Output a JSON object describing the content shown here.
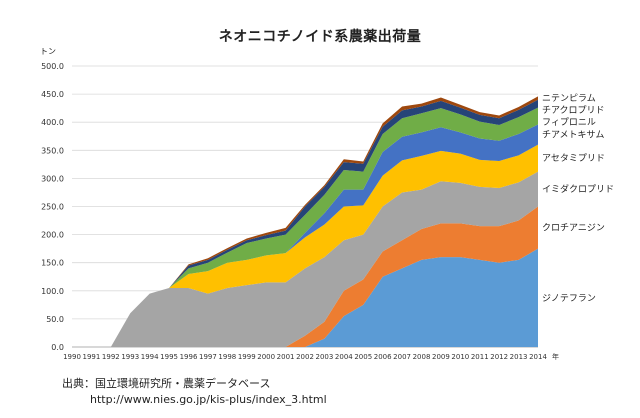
{
  "chart_data": {
    "type": "area",
    "stacked": true,
    "title": "ネオニコチノイド系農薬出荷量",
    "ylabel": "トン",
    "xlabel": "年",
    "ylim": [
      0,
      500
    ],
    "yticks": [
      "0.0",
      "50.0",
      "100.0",
      "150.0",
      "200.0",
      "250.0",
      "300.0",
      "350.0",
      "400.0",
      "450.0",
      "500.0"
    ],
    "grid": true,
    "legend": "right-inline",
    "categories": [
      "1990",
      "1991",
      "1992",
      "1993",
      "1994",
      "1995",
      "1996",
      "1997",
      "1998",
      "1999",
      "2000",
      "2001",
      "2002",
      "2003",
      "2004",
      "2005",
      "2006",
      "2007",
      "2008",
      "2009",
      "2010",
      "2011",
      "2012",
      "2013",
      "2014"
    ],
    "series": [
      {
        "name": "ジノテフラン",
        "color": "#5b9bd5",
        "values": [
          0,
          0,
          0,
          0,
          0,
          0,
          0,
          0,
          0,
          0,
          0,
          0,
          0,
          15,
          55,
          75,
          125,
          140,
          155,
          160,
          160,
          155,
          150,
          155,
          175
        ]
      },
      {
        "name": "クロチアニジン",
        "color": "#ed7d31",
        "values": [
          0,
          0,
          0,
          0,
          0,
          0,
          0,
          0,
          0,
          0,
          0,
          0,
          20,
          30,
          45,
          45,
          45,
          50,
          55,
          60,
          60,
          60,
          65,
          70,
          75
        ]
      },
      {
        "name": "イミダクロプリド",
        "color": "#a5a5a5",
        "values": [
          0,
          0,
          0,
          60,
          95,
          105,
          105,
          95,
          105,
          110,
          115,
          115,
          120,
          115,
          90,
          80,
          80,
          85,
          70,
          75,
          72,
          70,
          68,
          68,
          62
        ]
      },
      {
        "name": "アセタミプリド",
        "color": "#ffc000",
        "values": [
          0,
          0,
          0,
          0,
          0,
          0,
          25,
          40,
          45,
          45,
          48,
          52,
          55,
          58,
          60,
          52,
          55,
          57,
          60,
          54,
          52,
          48,
          48,
          48,
          48
        ]
      },
      {
        "name": "チアメトキサム",
        "color": "#4472c4",
        "values": [
          0,
          0,
          0,
          0,
          0,
          0,
          0,
          0,
          0,
          0,
          0,
          0,
          8,
          20,
          30,
          28,
          42,
          42,
          42,
          42,
          38,
          38,
          36,
          38,
          36
        ]
      },
      {
        "name": "フィプロニル",
        "color": "#70ad47",
        "values": [
          0,
          0,
          0,
          0,
          0,
          0,
          10,
          15,
          18,
          30,
          30,
          33,
          32,
          33,
          35,
          32,
          32,
          33,
          34,
          34,
          32,
          30,
          28,
          30,
          30
        ]
      },
      {
        "name": "チアクロプリド",
        "color": "#264478",
        "values": [
          0,
          0,
          0,
          0,
          0,
          0,
          5,
          5,
          5,
          5,
          6,
          7,
          15,
          14,
          14,
          14,
          13,
          14,
          12,
          13,
          12,
          12,
          12,
          13,
          14
        ]
      },
      {
        "name": "ニテンピラム",
        "color": "#9e480e",
        "values": [
          0,
          0,
          0,
          0,
          0,
          0,
          2,
          3,
          3,
          3,
          4,
          5,
          3,
          3,
          5,
          4,
          6,
          7,
          5,
          6,
          5,
          5,
          5,
          5,
          6
        ]
      }
    ]
  },
  "source": {
    "line1": "出典：国立環境研究所・農薬データベース",
    "line2": "http://www.nies.go.jp/kis-plus/index_3.html"
  }
}
